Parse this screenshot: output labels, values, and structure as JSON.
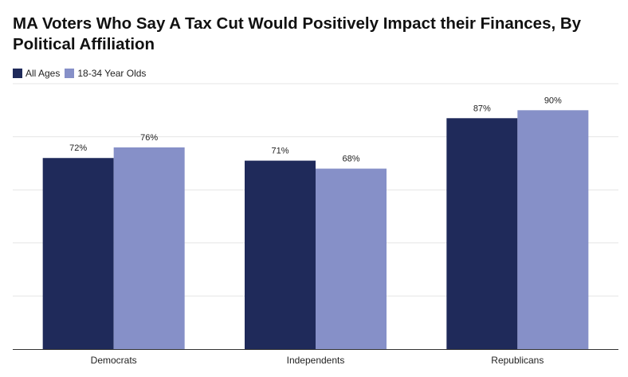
{
  "chart_data": {
    "type": "bar",
    "title": "MA Voters Who Say A Tax Cut Would Positively Impact their Finances, By Political Affiliation",
    "categories": [
      "Democrats",
      "Independents",
      "Republicans"
    ],
    "series": [
      {
        "name": "All Ages",
        "values": [
          72,
          71,
          87
        ],
        "labels": [
          "72%",
          "71%",
          "87%"
        ],
        "color": "#1f2a5a"
      },
      {
        "name": "18-34 Year Olds",
        "values": [
          76,
          68,
          90
        ],
        "labels": [
          "76%",
          "68%",
          "90%"
        ],
        "color": "#8690c8"
      }
    ],
    "xlabel": "",
    "ylabel": "",
    "ylim": [
      0,
      100
    ],
    "grid": true,
    "legend_position": "top-left",
    "gridline_color": "#e5e5e5",
    "axis_color": "#333333"
  }
}
